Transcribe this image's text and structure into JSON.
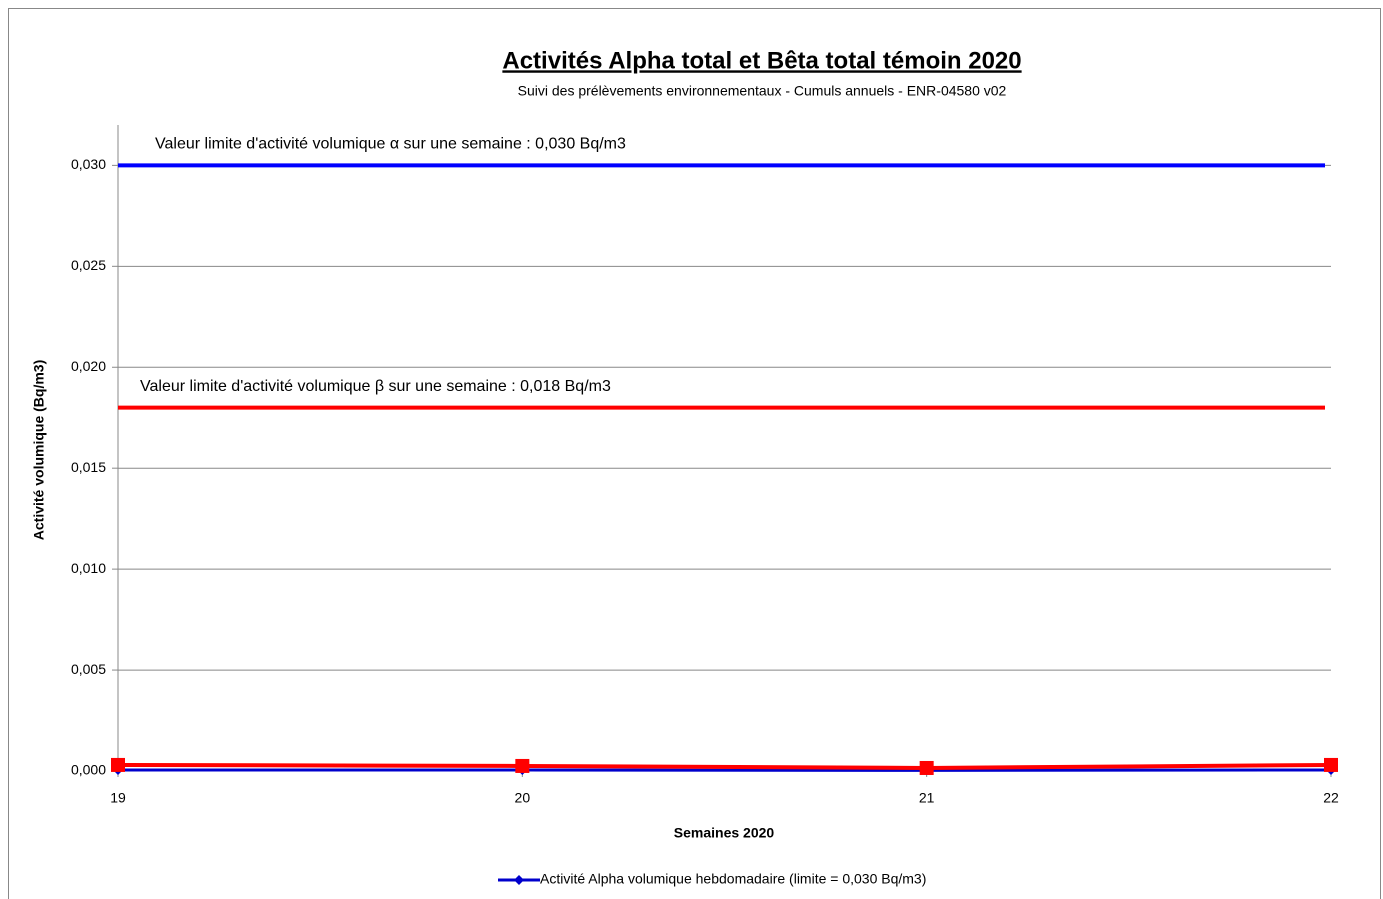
{
  "chart_data": {
    "type": "line",
    "title": "Activités Alpha total et Bêta total témoin 2020",
    "subtitle": "Suivi des prélèvements environnementaux - Cumuls annuels - ENR-04580 v02",
    "x_label": "Semaines 2020",
    "y_label": "Activité volumique (Bq/m3)",
    "x": [
      19,
      20,
      21,
      22
    ],
    "xlim": [
      19,
      22
    ],
    "xticks": [
      19,
      20,
      21,
      22
    ],
    "ylim": [
      0,
      0.032
    ],
    "yticks": [
      {
        "value": 0,
        "label": "0,000"
      },
      {
        "value": 0.005,
        "label": "0,005"
      },
      {
        "value": 0.01,
        "label": "0,010"
      },
      {
        "value": 0.015,
        "label": "0,015"
      },
      {
        "value": 0.02,
        "label": "0,020"
      },
      {
        "value": 0.025,
        "label": "0,025"
      },
      {
        "value": 0.03,
        "label": "0,030"
      }
    ],
    "grid": true,
    "legend": "bottom",
    "reference_lines": [
      {
        "value": 0.03,
        "color": "#0000ff",
        "label": "Valeur limite d'activité volumique α sur une semaine : 0,030 Bq/m3"
      },
      {
        "value": 0.018,
        "color": "#ff0000",
        "label": "Valeur limite d'activité volumique β sur une semaine : 0,018 Bq/m3"
      }
    ],
    "series": [
      {
        "name": "Activité Alpha volumique hebdomadaire (limite = 0,030 Bq/m3)",
        "color": "#0000cc",
        "marker": "diamond",
        "values": [
          5e-05,
          5e-05,
          3e-05,
          5e-05
        ]
      },
      {
        "color": "#ff0000",
        "marker": "square",
        "values": [
          0.0003,
          0.00025,
          0.00015,
          0.0003
        ]
      }
    ]
  }
}
